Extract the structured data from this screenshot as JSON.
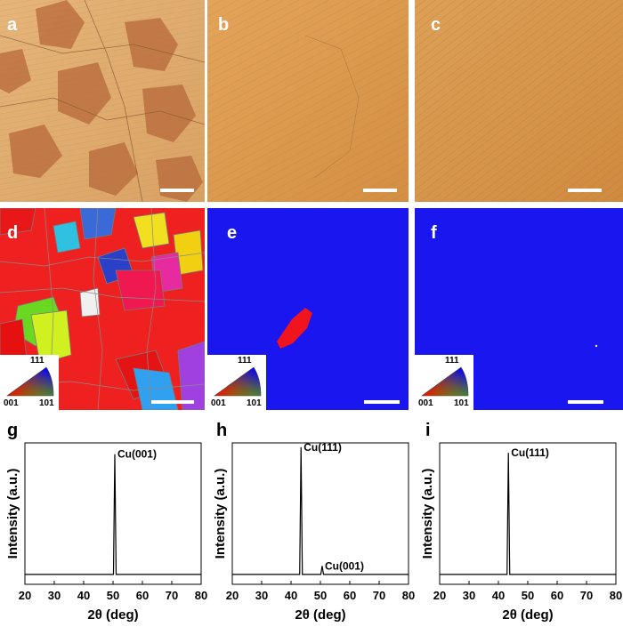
{
  "panels": {
    "a": {
      "label": "a"
    },
    "b": {
      "label": "b"
    },
    "c": {
      "label": "c"
    },
    "d": {
      "label": "d"
    },
    "e": {
      "label": "e"
    },
    "f": {
      "label": "f"
    },
    "g": {
      "label": "g"
    },
    "h": {
      "label": "h"
    },
    "i": {
      "label": "i"
    }
  },
  "ipf_legend": {
    "top": "111",
    "left": "001",
    "right": "101"
  },
  "colors": {
    "optical_copper": "#d99a4e",
    "ebsd_blue": "#1a16f0",
    "ebsd_red": "#f0141e",
    "scalebar": "#ffffff"
  },
  "chart_data": [
    {
      "type": "line",
      "panel": "g",
      "xlabel": "2θ (deg)",
      "ylabel": "Intensity (a.u.)",
      "xlim": [
        20,
        80
      ],
      "xticks": [
        20,
        30,
        40,
        50,
        60,
        70,
        80
      ],
      "peaks": [
        {
          "x": 50.6,
          "rel_height": 0.92,
          "label": "Cu(001)"
        }
      ],
      "baseline": 0.07
    },
    {
      "type": "line",
      "panel": "h",
      "xlabel": "2θ (deg)",
      "ylabel": "Intensity (a.u.)",
      "xlim": [
        20,
        80
      ],
      "xticks": [
        20,
        30,
        40,
        50,
        60,
        70,
        80
      ],
      "peaks": [
        {
          "x": 43.4,
          "rel_height": 0.97,
          "label": "Cu(111)"
        },
        {
          "x": 50.6,
          "rel_height": 0.13,
          "label": "Cu(001)"
        }
      ],
      "baseline": 0.07
    },
    {
      "type": "line",
      "panel": "i",
      "xlabel": "2θ (deg)",
      "ylabel": "Intensity (a.u.)",
      "xlim": [
        20,
        80
      ],
      "xticks": [
        20,
        30,
        40,
        50,
        60,
        70,
        80
      ],
      "peaks": [
        {
          "x": 43.4,
          "rel_height": 0.93,
          "label": "Cu(111)"
        }
      ],
      "baseline": 0.07
    }
  ]
}
